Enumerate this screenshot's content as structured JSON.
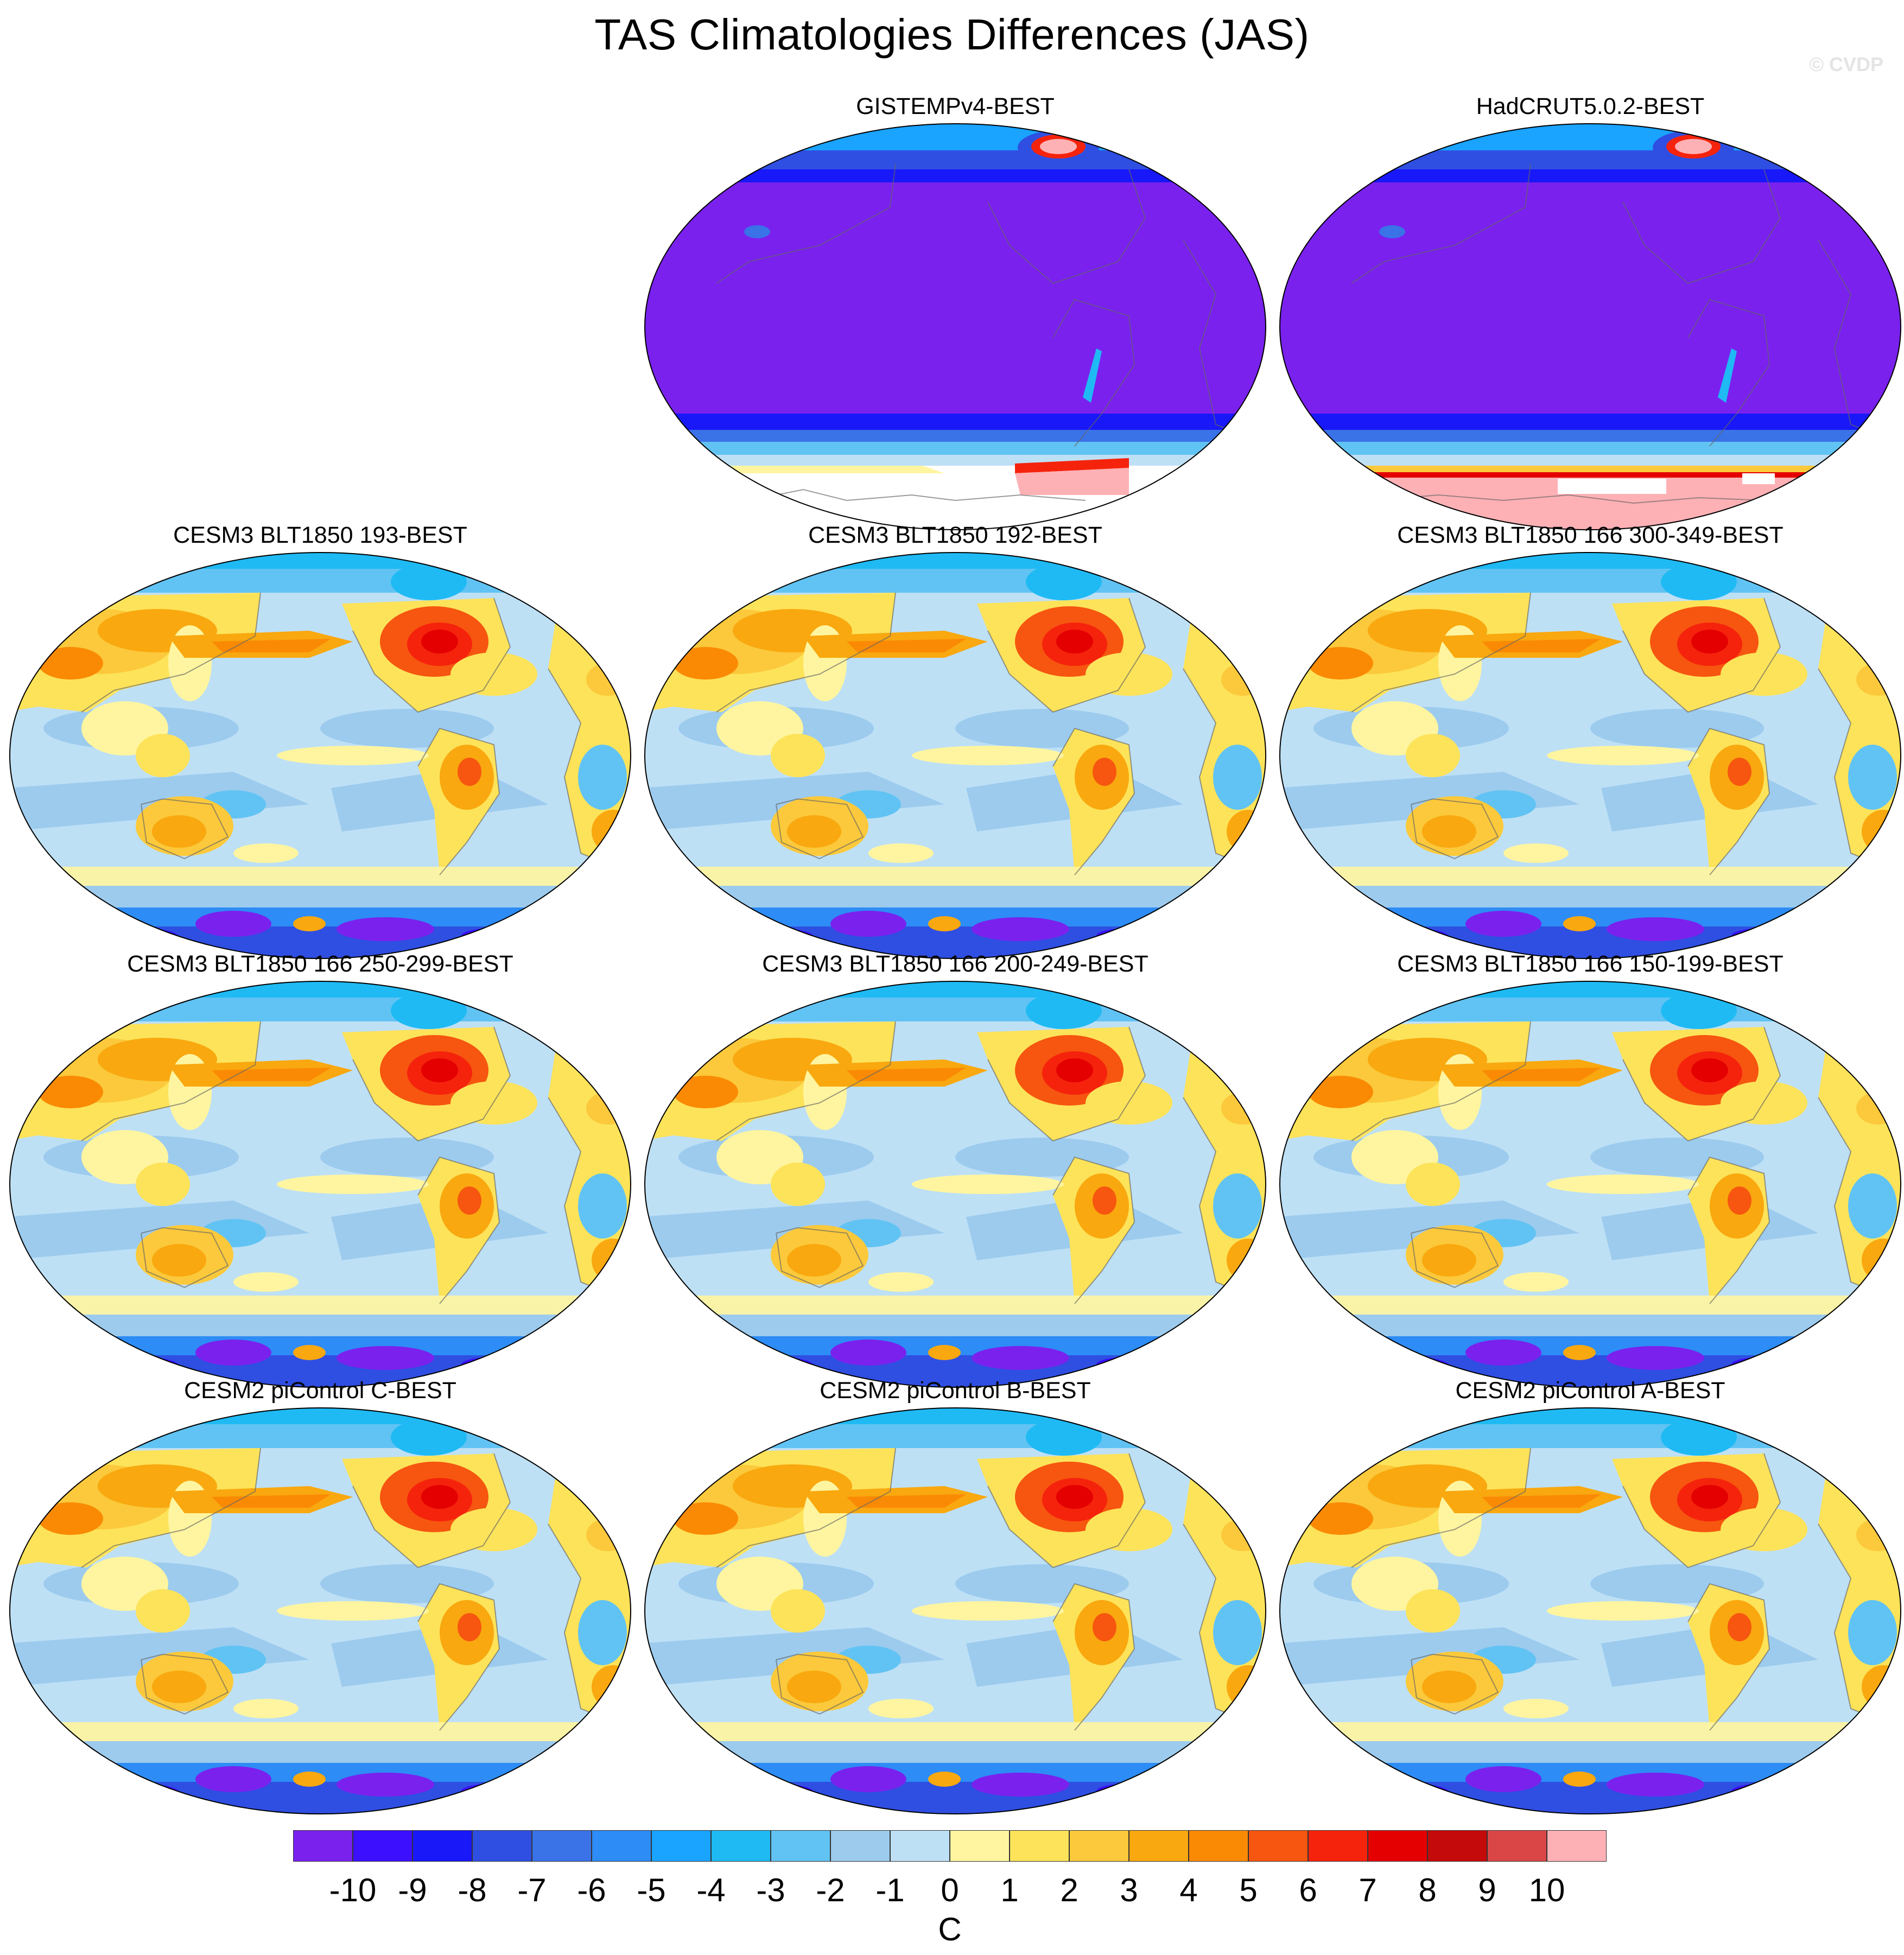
{
  "title": "TAS Climatologies Differences (JAS)",
  "watermark": "© CVDP",
  "colorbar": {
    "unit": "C",
    "ticks": [
      "-10",
      "-9",
      "-8",
      "-7",
      "-6",
      "-5",
      "-4",
      "-3",
      "-2",
      "-1",
      "0",
      "1",
      "2",
      "3",
      "4",
      "5",
      "6",
      "7",
      "8",
      "9",
      "10"
    ],
    "colors": [
      "#7a21ee",
      "#3c0fff",
      "#1818f8",
      "#2f4fe2",
      "#3a72e8",
      "#2d8cf5",
      "#1aa3ff",
      "#1fbaf4",
      "#61c3f3",
      "#9ccbee",
      "#bee0f5",
      "#fff5a0",
      "#fde35a",
      "#fbc93b",
      "#f9a80f",
      "#fa8a04",
      "#f6560f",
      "#f5230c",
      "#e40000",
      "#c40a0a",
      "#da4646",
      "#feb1b5"
    ]
  },
  "panels": [
    {
      "title": "GISTEMPv4-BEST",
      "style": "obs1"
    },
    {
      "title": "HadCRUT5.0.2-BEST",
      "style": "obs2"
    },
    {
      "title": "CESM3 BLT1850 193-BEST",
      "style": "model"
    },
    {
      "title": "CESM3 BLT1850 192-BEST",
      "style": "model"
    },
    {
      "title": "CESM3 BLT1850 166 300-349-BEST",
      "style": "model"
    },
    {
      "title": "CESM3 BLT1850 166 250-299-BEST",
      "style": "model"
    },
    {
      "title": "CESM3 BLT1850 166 200-249-BEST",
      "style": "model"
    },
    {
      "title": "CESM3 BLT1850 166 150-199-BEST",
      "style": "model"
    },
    {
      "title": "CESM2 piControl C-BEST",
      "style": "model"
    },
    {
      "title": "CESM2 piControl B-BEST",
      "style": "model"
    },
    {
      "title": "CESM2 piControl A-BEST",
      "style": "model"
    }
  ]
}
